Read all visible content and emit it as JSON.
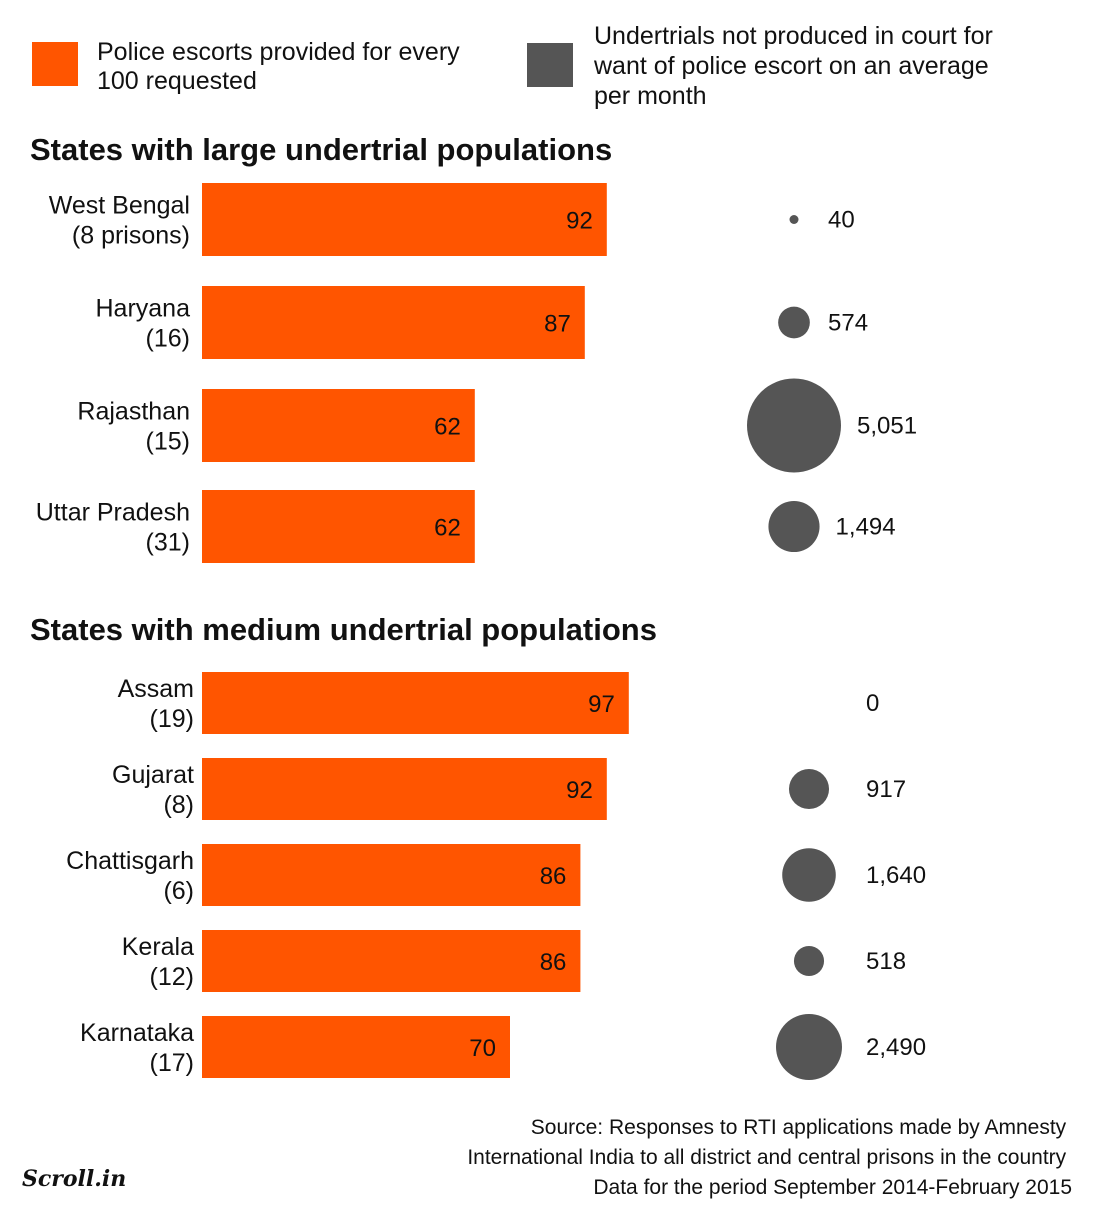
{
  "chart_data": {
    "type": "bar",
    "legend": [
      {
        "lines": [
          "Police escorts provided for every",
          "100 requested"
        ],
        "color": "#FF5500"
      },
      {
        "lines": [
          "Undertrials not produced in court for",
          "want of police escort on an average",
          "per month"
        ],
        "color": "#555555"
      }
    ],
    "xlim": [
      0,
      100
    ],
    "groups": [
      {
        "title": "States with large undertrial populations",
        "rows": [
          {
            "state": "West Bengal",
            "prisons": "(8 prisons)",
            "escorts": 92,
            "escorts_label": "92",
            "undertrials": 40,
            "undertrials_label": "40"
          },
          {
            "state": "Haryana",
            "prisons": "(16)",
            "escorts": 87,
            "escorts_label": "87",
            "undertrials": 574,
            "undertrials_label": "574"
          },
          {
            "state": "Rajasthan",
            "prisons": "(15)",
            "escorts": 62,
            "escorts_label": "62",
            "undertrials": 5051,
            "undertrials_label": "5,051"
          },
          {
            "state": "Uttar Pradesh",
            "prisons": "(31)",
            "escorts": 62,
            "escorts_label": "62",
            "undertrials": 1494,
            "undertrials_label": "1,494"
          }
        ]
      },
      {
        "title": "States with medium undertrial populations",
        "rows": [
          {
            "state": "Assam",
            "prisons": "(19)",
            "escorts": 97,
            "escorts_label": "97",
            "undertrials": 0,
            "undertrials_label": "0"
          },
          {
            "state": "Gujarat",
            "prisons": "(8)",
            "escorts": 92,
            "escorts_label": "92",
            "undertrials": 917,
            "undertrials_label": "917"
          },
          {
            "state": "Chattisgarh",
            "prisons": "(6)",
            "escorts": 86,
            "escorts_label": "86",
            "undertrials": 1640,
            "undertrials_label": "1,640"
          },
          {
            "state": "Kerala",
            "prisons": "(12)",
            "escorts": 86,
            "escorts_label": "86",
            "undertrials": 518,
            "undertrials_label": "518"
          },
          {
            "state": "Karnataka",
            "prisons": "(17)",
            "escorts": 70,
            "escorts_label": "70",
            "undertrials": 2490,
            "undertrials_label": "2,490"
          }
        ]
      }
    ],
    "source": [
      "Source: Responses to RTI applications made by Amnesty",
      "International India to all district and central prisons in the country",
      "Data for the period September 2014-February 2015"
    ]
  },
  "logo": "Scroll.in",
  "colors": {
    "bar": "#FF5500",
    "bubble": "#555555"
  }
}
